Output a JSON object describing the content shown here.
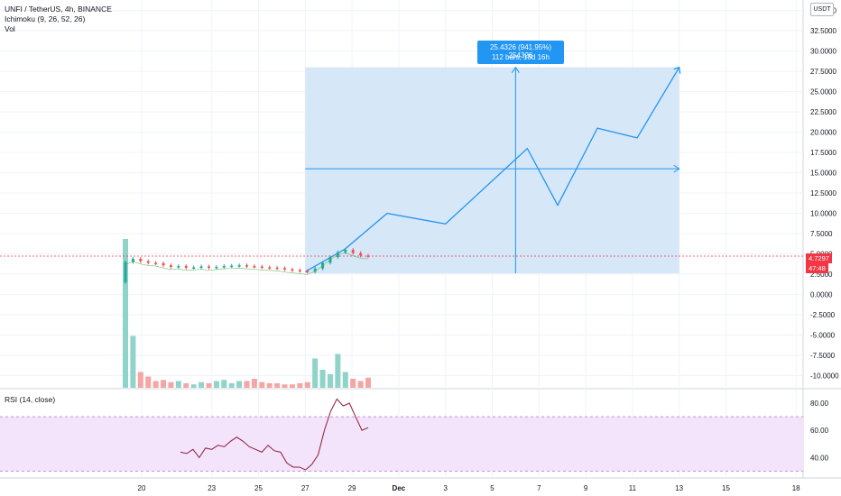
{
  "header": {
    "symbol_line": "UNFI / TetherUS, 4h, BINANCE",
    "indicator_ichimoku": "Ichimoku (9, 26, 52, 26)",
    "indicator_vol": "Vol",
    "currency": "USDT"
  },
  "rsi_panel": {
    "label": "RSI (14, close)"
  },
  "projection_label": {
    "line1": "25.4326 (941.95%) 254326",
    "line2": "112 bars, 18d 16h"
  },
  "price_tags": {
    "last_price": "4.7297",
    "countdown": "47:48"
  },
  "colors": {
    "up": "#26a69a",
    "down": "#ef5350",
    "projection_fill": "#d4e6f7",
    "projection_line": "#2196f3",
    "rsi_line": "#8e1d39",
    "rsi_band": "#f3e3fb",
    "last_price": "#f23645"
  },
  "chart_data": [
    {
      "type": "line",
      "title": "UNFI / TetherUS, 4h, BINANCE",
      "x_tick_labels": [
        "20",
        "23",
        "25",
        "27",
        "29",
        "Dec",
        "3",
        "5",
        "7",
        "9",
        "11",
        "13",
        "15",
        "18"
      ],
      "y_tick_labels": [
        "35.0000",
        "32.5000",
        "30.0000",
        "27.5000",
        "25.0000",
        "22.5000",
        "20.0000",
        "17.5000",
        "15.0000",
        "12.5000",
        "10.0000",
        "7.5000",
        "5.0000",
        "2.5000",
        "0.0000",
        "-2.5000",
        "-5.0000",
        "-7.5000",
        "-10.0000"
      ],
      "ylim": [
        -11.5,
        36.3
      ],
      "price_series": [
        4.0,
        4.4,
        4.1,
        3.9,
        3.85,
        3.6,
        3.4,
        3.5,
        3.3,
        3.35,
        3.45,
        3.3,
        3.4,
        3.5,
        3.55,
        3.6,
        3.5,
        3.45,
        3.35,
        3.3,
        3.25,
        3.1,
        3.0,
        2.9,
        2.8,
        3.2,
        3.9,
        4.6,
        5.2,
        5.5,
        5.1,
        4.8,
        4.73
      ],
      "projection_path": [
        [
          27,
          2.8
        ],
        [
          28.7,
          5.6
        ],
        [
          30.5,
          10.0
        ],
        [
          33.0,
          8.7
        ],
        [
          36.5,
          18.0
        ],
        [
          37.8,
          11.0
        ],
        [
          39.5,
          20.5
        ],
        [
          41.2,
          19.3
        ],
        [
          43.0,
          28.0
        ]
      ],
      "projection_box": {
        "x_range": [
          27.0,
          43.0
        ],
        "y_range": [
          2.6,
          28.0
        ]
      },
      "measure_target_x": 36.0,
      "measure_mid_y": 15.5,
      "last_price": 4.7297,
      "volume": [
        6.6,
        2.3,
        0.7,
        0.5,
        0.3,
        0.35,
        0.25,
        0.3,
        0.2,
        0.15,
        0.25,
        0.2,
        0.3,
        0.35,
        0.2,
        0.3,
        0.3,
        0.4,
        0.25,
        0.2,
        0.2,
        0.15,
        0.15,
        0.2,
        0.25,
        1.3,
        0.8,
        0.6,
        1.5,
        0.7,
        0.4,
        0.3,
        0.45
      ]
    },
    {
      "type": "line",
      "title": "RSI (14, close)",
      "y_tick_labels": [
        "80.00",
        "60.00",
        "40.00"
      ],
      "ylim": [
        25,
        90
      ],
      "band": [
        30,
        70
      ],
      "values": [
        44,
        43,
        46,
        40,
        47,
        46,
        49,
        48,
        52,
        55,
        52,
        48,
        46,
        44,
        49,
        45,
        44,
        36,
        33,
        33,
        31,
        35,
        42,
        60,
        74,
        83,
        78,
        80,
        70,
        60,
        62
      ]
    }
  ]
}
